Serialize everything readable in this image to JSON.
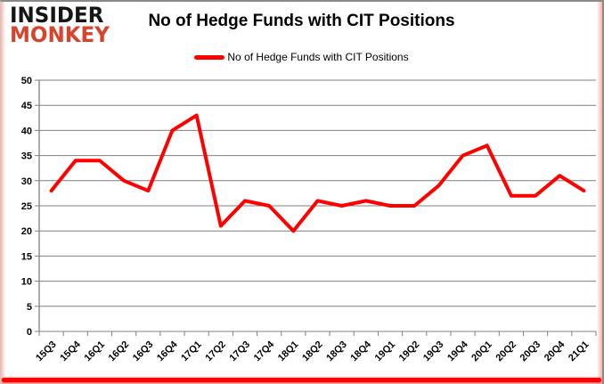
{
  "logo": {
    "line1": "INSIDER",
    "line2": "MONKEY"
  },
  "title": "No of Hedge Funds with CIT Positions",
  "legend": {
    "label": "No of Hedge Funds with CIT Positions"
  },
  "colors": {
    "series_red": "#ff0000",
    "logo_black": "#151515",
    "logo_red": "#d8432c",
    "gridline_gray": "#808080",
    "axis_gray": "#808080",
    "border_gray": "#8a8a8a",
    "bottom_bar_red": "#ff0000"
  },
  "chart_data": {
    "type": "line",
    "title": "No of Hedge Funds with CIT Positions",
    "xlabel": "",
    "ylabel": "",
    "categories": [
      "15Q3",
      "15Q4",
      "16Q1",
      "16Q2",
      "16Q3",
      "16Q4",
      "17Q1",
      "17Q2",
      "17Q3",
      "17Q4",
      "18Q1",
      "18Q2",
      "18Q3",
      "18Q4",
      "19Q1",
      "19Q2",
      "19Q3",
      "19Q4",
      "20Q1",
      "20Q2",
      "20Q3",
      "20Q4",
      "21Q1"
    ],
    "series": [
      {
        "name": "No of Hedge Funds with CIT Positions",
        "color": "#ff0000",
        "values": [
          28,
          34,
          34,
          30,
          28,
          40,
          43,
          21,
          26,
          25,
          20,
          26,
          25,
          26,
          25,
          25,
          29,
          35,
          37,
          27,
          27,
          31,
          28
        ]
      }
    ],
    "ylim": [
      0,
      50
    ],
    "ytick_step": 5,
    "grid": true,
    "legend_position": "top-center",
    "x_label_rotation_deg": -45,
    "line_width": 4
  }
}
